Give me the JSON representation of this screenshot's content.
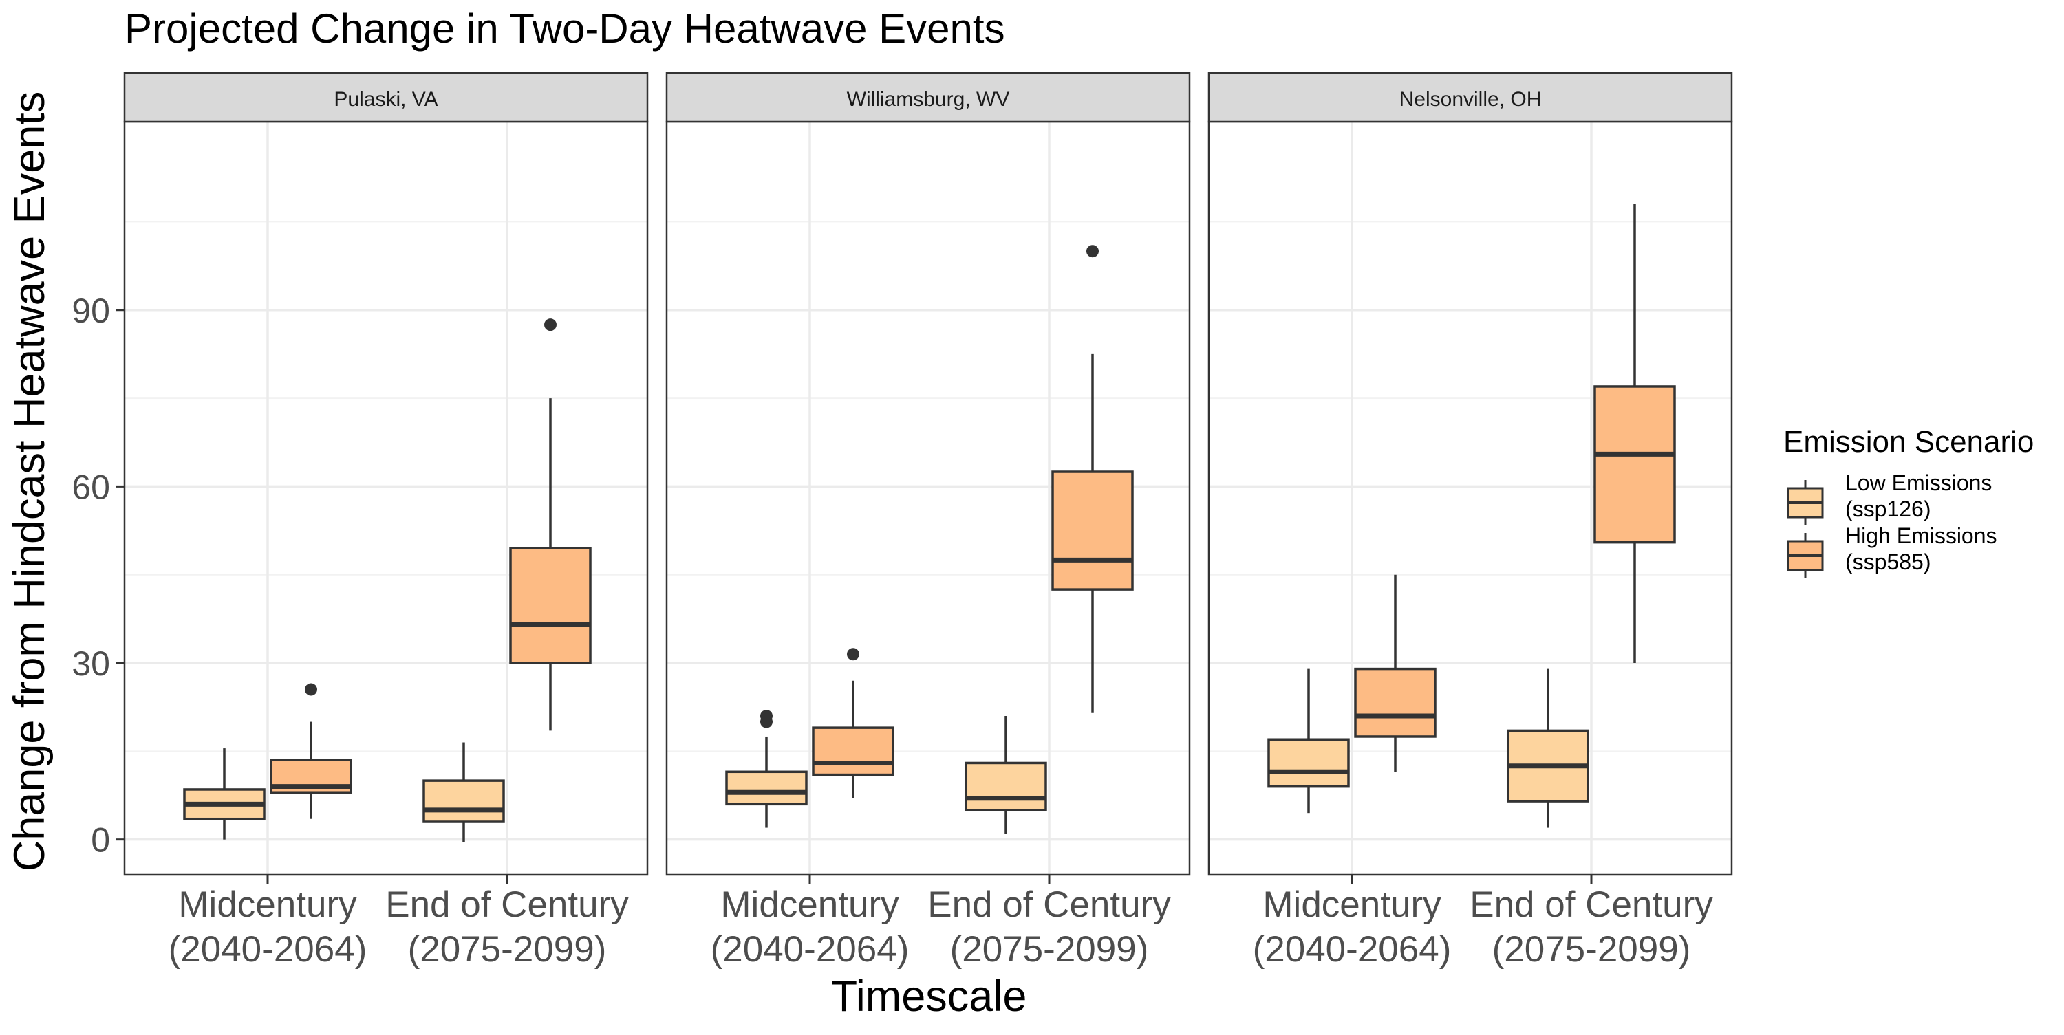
{
  "chart_data": {
    "type": "boxplot",
    "title": "Projected Change in Two-Day Heatwave Events",
    "xlabel": "Timescale",
    "ylabel": "Change from Hindcast Heatwave Events",
    "ylim": [
      -6,
      122
    ],
    "yticks": [
      0,
      30,
      60,
      90
    ],
    "grid": true,
    "legend_position": "right",
    "legend": {
      "title": "Emission Scenario",
      "entries": [
        {
          "line1": "Low Emissions",
          "line2": "(ssp126)",
          "color": "#FDD49E"
        },
        {
          "line1": "High Emissions",
          "line2": "(ssp585)",
          "color": "#FDBB84"
        }
      ]
    },
    "categories": [
      {
        "line1": "Midcentury",
        "line2": "(2040-2064)"
      },
      {
        "line1": "End of Century",
        "line2": "(2075-2099)"
      }
    ],
    "panels": [
      {
        "name": "Pulaski, VA",
        "boxes": [
          {
            "category": 0,
            "series": 0,
            "whisker_low": 0,
            "q1": 3.5,
            "median": 6,
            "q3": 8.5,
            "whisker_high": 15.5,
            "outliers": []
          },
          {
            "category": 0,
            "series": 1,
            "whisker_low": 3.5,
            "q1": 8,
            "median": 9,
            "q3": 13.5,
            "whisker_high": 20,
            "outliers": [
              25.5
            ]
          },
          {
            "category": 1,
            "series": 0,
            "whisker_low": -0.5,
            "q1": 3,
            "median": 5,
            "q3": 10,
            "whisker_high": 16.5,
            "outliers": []
          },
          {
            "category": 1,
            "series": 1,
            "whisker_low": 18.5,
            "q1": 30,
            "median": 36.5,
            "q3": 49.5,
            "whisker_high": 75,
            "outliers": [
              87.5
            ]
          }
        ]
      },
      {
        "name": "Williamsburg, WV",
        "boxes": [
          {
            "category": 0,
            "series": 0,
            "whisker_low": 2,
            "q1": 6,
            "median": 8,
            "q3": 11.5,
            "whisker_high": 17.5,
            "outliers": [
              20,
              21
            ]
          },
          {
            "category": 0,
            "series": 1,
            "whisker_low": 7,
            "q1": 11,
            "median": 13,
            "q3": 19,
            "whisker_high": 27,
            "outliers": [
              31.5
            ]
          },
          {
            "category": 1,
            "series": 0,
            "whisker_low": 1,
            "q1": 5,
            "median": 7,
            "q3": 13,
            "whisker_high": 21,
            "outliers": []
          },
          {
            "category": 1,
            "series": 1,
            "whisker_low": 21.5,
            "q1": 42.5,
            "median": 47.5,
            "q3": 62.5,
            "whisker_high": 82.5,
            "outliers": [
              100
            ]
          }
        ]
      },
      {
        "name": "Nelsonville, OH",
        "boxes": [
          {
            "category": 0,
            "series": 0,
            "whisker_low": 4.5,
            "q1": 9,
            "median": 11.5,
            "q3": 17,
            "whisker_high": 29,
            "outliers": []
          },
          {
            "category": 0,
            "series": 1,
            "whisker_low": 11.5,
            "q1": 17.5,
            "median": 21,
            "q3": 29,
            "whisker_high": 45,
            "outliers": []
          },
          {
            "category": 1,
            "series": 0,
            "whisker_low": 2,
            "q1": 6.5,
            "median": 12.5,
            "q3": 18.5,
            "whisker_high": 29,
            "outliers": []
          },
          {
            "category": 1,
            "series": 1,
            "whisker_low": 30,
            "q1": 50.5,
            "median": 65.5,
            "q3": 77,
            "whisker_high": 108,
            "outliers": []
          }
        ]
      }
    ]
  }
}
